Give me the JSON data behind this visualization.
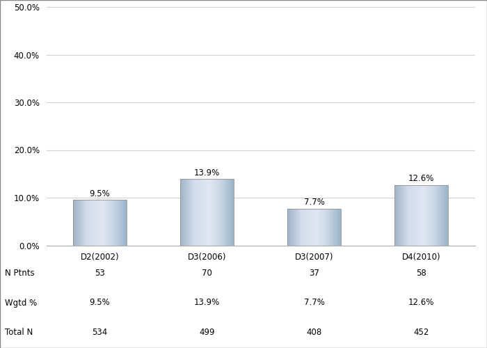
{
  "categories": [
    "D2(2002)",
    "D3(2006)",
    "D3(2007)",
    "D4(2010)"
  ],
  "values": [
    9.5,
    13.9,
    7.7,
    12.6
  ],
  "n_ptnts": [
    53,
    70,
    37,
    58
  ],
  "wgtd_pct": [
    "9.5%",
    "13.9%",
    "7.7%",
    "12.6%"
  ],
  "total_n": [
    534,
    499,
    408,
    452
  ],
  "bar_labels": [
    "9.5%",
    "13.9%",
    "7.7%",
    "12.6%"
  ],
  "ylim": [
    0,
    50
  ],
  "yticks": [
    0,
    10,
    20,
    30,
    40,
    50
  ],
  "ytick_labels": [
    "0.0%",
    "10.0%",
    "20.0%",
    "30.0%",
    "40.0%",
    "50.0%"
  ],
  "background_color": "#ffffff",
  "grid_color": "#d0d0d0",
  "table_row_labels": [
    "N Ptnts",
    "Wgtd %",
    "Total N"
  ],
  "tick_fontsize": 8.5,
  "table_fontsize": 8.5,
  "bar_label_fontsize": 8.5,
  "bar_width": 0.5
}
